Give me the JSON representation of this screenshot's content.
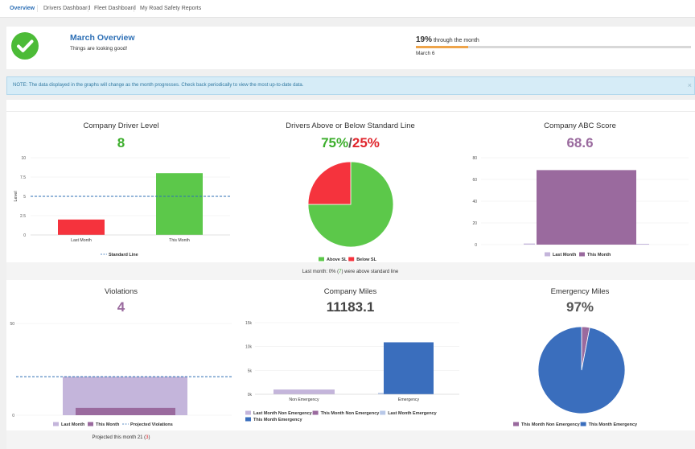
{
  "nav": {
    "tabs": [
      "Overview",
      "Drivers Dashboard",
      "Fleet Dashboard",
      "My Road Safety Reports"
    ]
  },
  "overview": {
    "title": "March Overview",
    "subtitle": "Things are looking good!",
    "progress_pct_text": "19%",
    "progress_suffix": " through the month",
    "progress_fraction": 0.19,
    "date": "March 6"
  },
  "notice": {
    "text": "NOTE: The data displayed in the graphs will change as the month progresses. Check back periodically to view the most up-to-date data.",
    "close": "×"
  },
  "driver_level": {
    "title": "Company Driver Level",
    "value": "8",
    "ylabel": "Level",
    "legend": "Standard Line"
  },
  "above_below": {
    "title": "Drivers Above or Below Standard Line",
    "value_above": "75%",
    "slash": "/",
    "value_below": "25%",
    "legend_above": "Above SL",
    "legend_below": "Below SL"
  },
  "abc": {
    "title": "Company ABC Score",
    "value": "68.6",
    "legend_last": "Last Month",
    "legend_this": "This Month"
  },
  "last_month_note": {
    "prefix": "Last month: 0% (",
    "count": "7",
    "suffix": ") were above standard line"
  },
  "violations": {
    "title": "Violations",
    "value": "4",
    "legend_last": "Last Month",
    "legend_this": "This Month",
    "legend_proj": "Projected Violations",
    "projected_prefix": "Projected this month 21 (",
    "projected_count": "3",
    "projected_suffix": ")"
  },
  "miles": {
    "title": "Company Miles",
    "value": "11183.1",
    "legend": [
      "Last Month Non Emergency",
      "This Month Non Emergency",
      "Last Month Emergency",
      "This Month Emergency"
    ]
  },
  "emergency": {
    "title": "Emergency Miles",
    "value": "97%",
    "legend_non": "This Month Non Emergency",
    "legend_em": "This Month Emergency"
  },
  "colors": {
    "accent": "#2d6fb5",
    "green": "#5cc84a",
    "red": "#f5333d",
    "purple": "#9a6a9e",
    "lavender": "#c4b5db",
    "blue": "#3a6ebd",
    "light_blue": "#b8c8e8",
    "orange": "#eea44a"
  },
  "chart_data": [
    {
      "type": "bar",
      "title": "Company Driver Level",
      "categories": [
        "Last Month",
        "This Month"
      ],
      "values": [
        2,
        8
      ],
      "ylabel": "Level",
      "ylim": [
        0,
        10
      ],
      "yticks": [
        "0",
        "2.5",
        "5",
        "7.5",
        "10"
      ],
      "standard_line": 5,
      "legend": [
        "Standard Line"
      ]
    },
    {
      "type": "pie",
      "title": "Drivers Above or Below Standard Line",
      "labels": [
        "Above SL",
        "Below SL"
      ],
      "values": [
        75,
        25
      ]
    },
    {
      "type": "bar",
      "title": "Company ABC Score",
      "categories": [
        "Last Month",
        "This Month"
      ],
      "values": [
        1,
        68.6
      ],
      "ylim": [
        0,
        80
      ],
      "yticks": [
        "0",
        "20",
        "40",
        "60",
        "80"
      ],
      "legend": [
        "Last Month",
        "This Month"
      ]
    },
    {
      "type": "bar",
      "title": "Violations",
      "categories": [
        "Last Month",
        "This Month"
      ],
      "values": [
        21,
        4
      ],
      "ylim": [
        0,
        50
      ],
      "yticks": [
        "0",
        "50"
      ],
      "projected_line": 21,
      "legend": [
        "Last Month",
        "This Month",
        "Projected Violations"
      ]
    },
    {
      "type": "bar",
      "title": "Company Miles",
      "categories": [
        "Non Emergency",
        "Emergency"
      ],
      "series": [
        {
          "name": "Last Month Non Emergency",
          "values": [
            1000,
            0
          ]
        },
        {
          "name": "This Month Non Emergency",
          "values": [
            300,
            0
          ]
        },
        {
          "name": "Last Month Emergency",
          "values": [
            0,
            300
          ]
        },
        {
          "name": "This Month Emergency",
          "values": [
            0,
            10883
          ]
        }
      ],
      "ylim": [
        0,
        15000
      ],
      "yticks": [
        "0k",
        "5k",
        "10k",
        "15k"
      ]
    },
    {
      "type": "pie",
      "title": "Emergency Miles",
      "labels": [
        "This Month Non Emergency",
        "This Month Emergency"
      ],
      "values": [
        3,
        97
      ]
    }
  ]
}
